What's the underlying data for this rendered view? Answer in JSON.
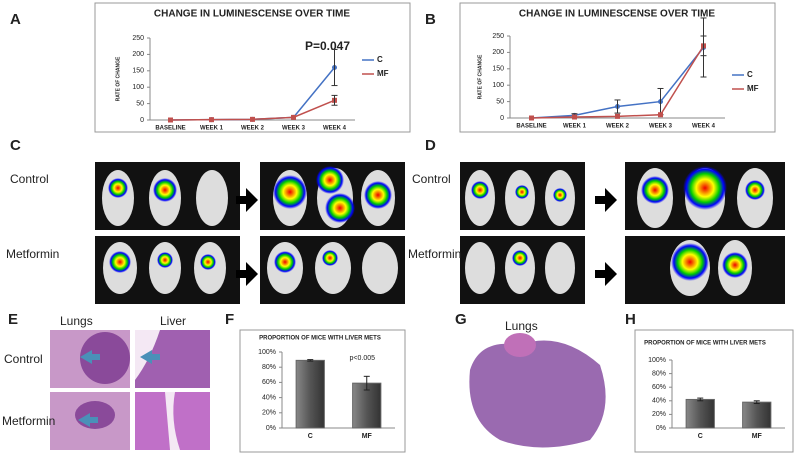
{
  "panel_labels": [
    "A",
    "B",
    "C",
    "D",
    "E",
    "F",
    "G",
    "H"
  ],
  "row_labels": {
    "c": [
      "Control",
      "Metformin"
    ],
    "d": [
      "Control",
      "Metformin"
    ],
    "e": [
      "Control",
      "Metformin"
    ]
  },
  "column_labels": {
    "e": [
      "Lungs",
      "Liver"
    ],
    "g": [
      "Lungs"
    ]
  },
  "chart_data": [
    {
      "type": "line",
      "title": "CHANGE IN LUMINESCENSE OVER TIME",
      "y_label": "RATE OF CHANGE",
      "annotation": "P=0.047",
      "categories": [
        "BASELINE",
        "WEEK 1",
        "WEEK 2",
        "WEEK 3",
        "WEEK 4"
      ],
      "series": [
        {
          "name": "C",
          "color": "#4472c4",
          "values": [
            0,
            1,
            2,
            8,
            160
          ],
          "errors": [
            null,
            null,
            null,
            null,
            55
          ]
        },
        {
          "name": "MF",
          "color": "#c0504d",
          "values": [
            0,
            1,
            2,
            8,
            60
          ],
          "errors": [
            null,
            null,
            null,
            null,
            15
          ]
        }
      ],
      "ylim": [
        0,
        250
      ],
      "yticks": [
        0,
        50,
        100,
        150,
        200,
        250
      ],
      "grid": false
    },
    {
      "type": "line",
      "title": "CHANGE IN LUMINESCENSE OVER TIME",
      "y_label": "RATE OF CHANGE",
      "categories": [
        "BASELINE",
        "WEEK 1",
        "WEEK 2",
        "WEEK 3",
        "WEEK 4"
      ],
      "series": [
        {
          "name": "C",
          "color": "#4472c4",
          "values": [
            0,
            8,
            35,
            50,
            215
          ],
          "errors": [
            null,
            5,
            20,
            40,
            90
          ]
        },
        {
          "name": "MF",
          "color": "#c0504d",
          "values": [
            0,
            3,
            5,
            10,
            220
          ],
          "errors": [
            null,
            null,
            null,
            null,
            30
          ]
        }
      ],
      "ylim": [
        0,
        250
      ],
      "yticks": [
        0,
        50,
        100,
        150,
        200,
        250
      ],
      "grid": false
    },
    {
      "type": "bar",
      "title": "PROPORTION OF MICE WITH LIVER METS",
      "annotation": "p<0.005",
      "categories": [
        "C",
        "MF"
      ],
      "values": [
        89,
        59
      ],
      "errors": [
        1,
        9
      ],
      "color": "#666666",
      "ylim": [
        0,
        100
      ],
      "yticks": [
        {
          "value": 0,
          "label": "0%"
        },
        {
          "value": 20,
          "label": "20%"
        },
        {
          "value": 40,
          "label": "40%"
        },
        {
          "value": 60,
          "label": "60%"
        },
        {
          "value": 80,
          "label": "80%"
        },
        {
          "value": 100,
          "label": "100%"
        }
      ],
      "grid": false
    },
    {
      "type": "bar",
      "title": "PROPORTION OF MICE WITH LIVER METS",
      "categories": [
        "C",
        "MF"
      ],
      "values": [
        42,
        38
      ],
      "errors": [
        2,
        2
      ],
      "color": "#666666",
      "ylim": [
        0,
        100
      ],
      "yticks": [
        {
          "value": 0,
          "label": "0%"
        },
        {
          "value": 20,
          "label": "20%"
        },
        {
          "value": 40,
          "label": "40%"
        },
        {
          "value": 60,
          "label": "60%"
        },
        {
          "value": 80,
          "label": "80%"
        },
        {
          "value": 100,
          "label": "100%"
        }
      ],
      "grid": false
    }
  ]
}
